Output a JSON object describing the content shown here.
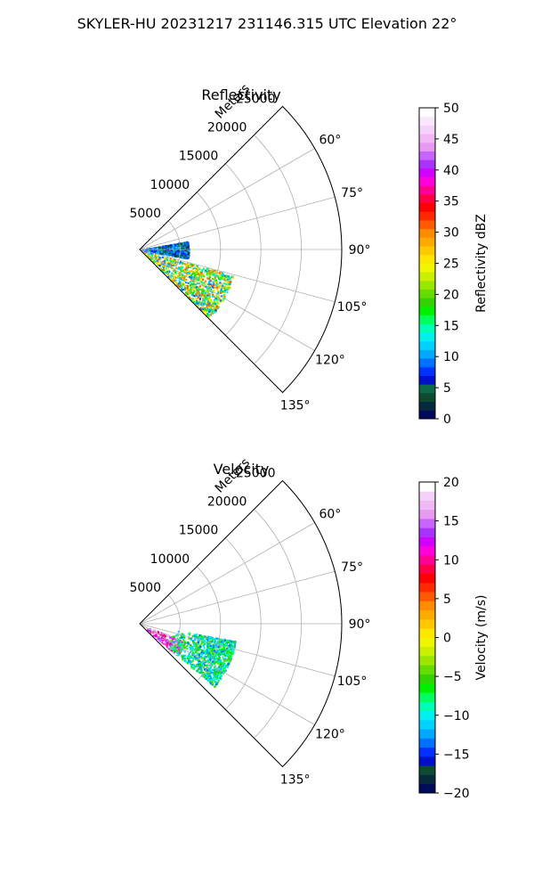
{
  "figure": {
    "suptitle": "SKYLER-HU  20231217  231146.315 UTC Elevation 22°"
  },
  "chart_data": [
    {
      "type": "heatmap",
      "subtype": "polar-sector-ppi",
      "title": "Reflectivity",
      "radial_axis_label": "Meters",
      "radial_ticks": [
        5000,
        10000,
        15000,
        20000,
        25000
      ],
      "radial_tick_labels": [
        "5000",
        "10000",
        "15000",
        "20000",
        "25000"
      ],
      "rlim": [
        0,
        25000
      ],
      "theta_range_deg": [
        45,
        135
      ],
      "theta_ticks_deg": [
        45,
        60,
        75,
        90,
        105,
        120,
        135
      ],
      "theta_tick_labels": [
        "60°",
        "75°",
        "90°",
        "105°",
        "120°",
        "135°"
      ],
      "grid": true,
      "colorbar": {
        "label": "Reflectivity dBZ",
        "vmin": 0,
        "vmax": 50,
        "ticks": [
          0,
          5,
          10,
          15,
          20,
          25,
          30,
          35,
          40,
          45,
          50
        ],
        "tick_labels": [
          "0",
          "5",
          "10",
          "15",
          "20",
          "25",
          "30",
          "35",
          "40",
          "45",
          "50"
        ],
        "colors": [
          "#000a5a",
          "#062a3c",
          "#0c4a32",
          "#0a6a4a",
          "#0010c8",
          "#0032ff",
          "#0070ff",
          "#00a8ff",
          "#00d2ff",
          "#00f0ee",
          "#00ffb4",
          "#00ff5a",
          "#00f000",
          "#32d200",
          "#64dc00",
          "#9be600",
          "#c8f000",
          "#f0f500",
          "#ffe600",
          "#ffc800",
          "#ffaa00",
          "#ff8c00",
          "#ff5a00",
          "#ff2800",
          "#ff0000",
          "#ff0046",
          "#ff0096",
          "#ff00dc",
          "#d200ff",
          "#aa32ff",
          "#c864ff",
          "#e69bf0",
          "#f0b9f5",
          "#f5d2fa",
          "#fae6ff",
          "#ffffff"
        ]
      },
      "echo_regions": [
        {
          "description": "main echo mass",
          "az_range_deg": [
            105,
            135
          ],
          "range_m": [
            0,
            12000
          ],
          "value_range": [
            8,
            32
          ]
        },
        {
          "description": "weak clutter near radar",
          "az_range_deg": [
            80,
            100
          ],
          "range_m": [
            0,
            6000
          ],
          "value_range": [
            3,
            12
          ]
        }
      ]
    },
    {
      "type": "heatmap",
      "subtype": "polar-sector-ppi",
      "title": "Velocity",
      "radial_axis_label": "Meters",
      "radial_ticks": [
        5000,
        10000,
        15000,
        20000,
        25000
      ],
      "radial_tick_labels": [
        "5000",
        "10000",
        "15000",
        "20000",
        "25000"
      ],
      "rlim": [
        0,
        25000
      ],
      "theta_range_deg": [
        45,
        135
      ],
      "theta_ticks_deg": [
        45,
        60,
        75,
        90,
        105,
        120,
        135
      ],
      "theta_tick_labels": [
        "60°",
        "75°",
        "90°",
        "105°",
        "120°",
        "135°"
      ],
      "grid": true,
      "colorbar": {
        "label": "Velocity (m/s)",
        "vmin": -20,
        "vmax": 20,
        "ticks": [
          -20,
          -15,
          -10,
          -5,
          0,
          5,
          10,
          15,
          20
        ],
        "tick_labels": [
          "−20",
          "−15",
          "−10",
          "−5",
          "0",
          "5",
          "10",
          "15",
          "20"
        ],
        "colors": [
          "#000a5a",
          "#062a3c",
          "#0c4a32",
          "#0010c8",
          "#0032ff",
          "#0070ff",
          "#00a8ff",
          "#00d2ff",
          "#00f0ee",
          "#00ffb4",
          "#00ff5a",
          "#00f000",
          "#32d200",
          "#64dc00",
          "#9be600",
          "#c8f000",
          "#f0f500",
          "#ffe600",
          "#ffc800",
          "#ffaa00",
          "#ff8c00",
          "#ff5a00",
          "#ff2800",
          "#ff0000",
          "#ff0046",
          "#ff0096",
          "#ff00dc",
          "#d200ff",
          "#aa32ff",
          "#c864ff",
          "#e69bf0",
          "#f0b9f5",
          "#f5d2fa",
          "#ffffff"
        ]
      },
      "echo_regions": [
        {
          "description": "strong inbound core",
          "az_range_deg": [
            112,
            130
          ],
          "range_m": [
            1000,
            6000
          ],
          "value_range": [
            8,
            20
          ]
        },
        {
          "description": "outbound outer echo",
          "az_range_deg": [
            100,
            130
          ],
          "range_m": [
            4000,
            12000
          ],
          "value_range": [
            -14,
            -4
          ]
        }
      ]
    }
  ]
}
